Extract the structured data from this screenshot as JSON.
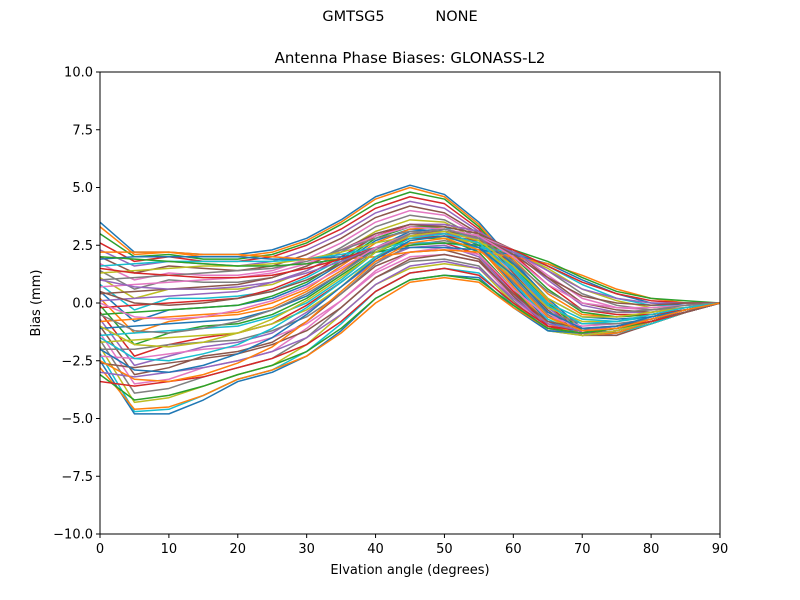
{
  "figure": {
    "suptitle": "GMTSG5           NONE"
  },
  "chart_data": {
    "type": "line",
    "title": "Antenna Phase Biases: GLONASS-L2",
    "xlabel": "Elvation angle (degrees)",
    "ylabel": "Bias (mm)",
    "xlim": [
      0,
      90
    ],
    "ylim": [
      -10,
      10
    ],
    "xticks": [
      0,
      10,
      20,
      30,
      40,
      50,
      60,
      70,
      80,
      90
    ],
    "yticks": [
      -10.0,
      -7.5,
      -5.0,
      -2.5,
      0.0,
      2.5,
      5.0,
      7.5,
      10.0
    ],
    "ytick_labels": [
      "−10.0",
      "−7.5",
      "−5.0",
      "−2.5",
      "0.0",
      "2.5",
      "5.0",
      "7.5",
      "10.0"
    ],
    "xtick_labels": [
      "0",
      "10",
      "20",
      "30",
      "40",
      "50",
      "60",
      "70",
      "80",
      "90"
    ],
    "grid": false,
    "x": [
      0,
      5,
      10,
      15,
      20,
      25,
      30,
      35,
      40,
      45,
      50,
      55,
      60,
      65,
      70,
      75,
      80,
      85,
      90
    ],
    "colors": [
      "#1f77b4",
      "#ff7f0e",
      "#2ca02c",
      "#d62728",
      "#9467bd",
      "#8c564b",
      "#e377c2",
      "#7f7f7f",
      "#bcbd22",
      "#17becf"
    ],
    "series": [
      {
        "values": [
          3.5,
          2.2,
          2.2,
          2.1,
          2.1,
          2.3,
          2.8,
          3.6,
          4.6,
          5.1,
          4.7,
          3.5,
          1.8,
          0.2,
          -1.1,
          -1.3,
          -0.9,
          -0.4,
          0.0
        ]
      },
      {
        "values": [
          3.3,
          2.1,
          2.2,
          2.0,
          2.0,
          2.2,
          2.7,
          3.5,
          4.5,
          5.0,
          4.6,
          3.4,
          1.7,
          0.1,
          -1.2,
          -1.3,
          -0.9,
          -0.4,
          0.0
        ]
      },
      {
        "values": [
          3.0,
          2.0,
          2.1,
          1.9,
          1.9,
          2.1,
          2.6,
          3.4,
          4.3,
          4.8,
          4.5,
          3.3,
          1.6,
          0.0,
          -1.2,
          -1.3,
          -0.9,
          -0.4,
          0.0
        ]
      },
      {
        "values": [
          2.6,
          1.8,
          2.0,
          1.8,
          1.8,
          2.0,
          2.5,
          3.2,
          4.1,
          4.6,
          4.3,
          3.2,
          1.5,
          -0.1,
          -1.3,
          -1.3,
          -0.9,
          -0.4,
          0.0
        ]
      },
      {
        "values": [
          2.3,
          1.6,
          1.8,
          1.7,
          1.6,
          1.8,
          2.3,
          3.0,
          3.9,
          4.4,
          4.1,
          3.1,
          1.4,
          -0.2,
          -1.3,
          -1.4,
          -0.9,
          -0.4,
          0.0
        ]
      },
      {
        "values": [
          2.0,
          1.3,
          1.6,
          1.5,
          1.4,
          1.6,
          2.1,
          2.8,
          3.7,
          4.2,
          3.9,
          3.0,
          1.3,
          -0.3,
          -1.4,
          -1.4,
          -0.9,
          -0.4,
          0.0
        ]
      },
      {
        "values": [
          1.7,
          1.0,
          1.3,
          1.2,
          1.2,
          1.4,
          1.9,
          2.6,
          3.5,
          4.0,
          3.8,
          2.9,
          1.2,
          -0.4,
          -1.4,
          -1.3,
          -0.9,
          -0.4,
          0.0
        ]
      },
      {
        "values": [
          1.4,
          0.6,
          1.0,
          0.9,
          0.9,
          1.1,
          1.6,
          2.4,
          3.3,
          3.8,
          3.6,
          2.8,
          1.1,
          -0.5,
          -1.4,
          -1.3,
          -0.9,
          -0.4,
          0.0
        ]
      },
      {
        "values": [
          1.1,
          0.2,
          0.6,
          0.6,
          0.6,
          0.8,
          1.4,
          2.2,
          3.1,
          3.6,
          3.5,
          2.7,
          1.0,
          -0.6,
          -1.4,
          -1.3,
          -0.9,
          -0.4,
          0.0
        ]
      },
      {
        "values": [
          0.8,
          -0.3,
          0.2,
          0.2,
          0.3,
          0.5,
          1.1,
          1.9,
          2.9,
          3.4,
          3.3,
          2.6,
          0.9,
          -0.7,
          -1.4,
          -1.3,
          -0.9,
          -0.4,
          0.0
        ]
      },
      {
        "values": [
          0.5,
          -0.8,
          -0.3,
          -0.2,
          -0.1,
          0.2,
          0.8,
          1.7,
          2.7,
          3.2,
          3.1,
          2.5,
          0.8,
          -0.8,
          -1.4,
          -1.3,
          -0.8,
          -0.4,
          0.0
        ]
      },
      {
        "values": [
          0.2,
          -1.3,
          -0.8,
          -0.6,
          -0.5,
          -0.2,
          0.5,
          1.4,
          2.4,
          3.0,
          3.0,
          2.4,
          0.7,
          -0.9,
          -1.4,
          -1.3,
          -0.8,
          -0.4,
          0.0
        ]
      },
      {
        "values": [
          -0.1,
          -1.8,
          -1.3,
          -1.0,
          -0.9,
          -0.5,
          0.2,
          1.2,
          2.2,
          2.8,
          2.8,
          2.2,
          0.6,
          -1.0,
          -1.4,
          -1.2,
          -0.8,
          -0.4,
          0.0
        ]
      },
      {
        "values": [
          -0.4,
          -2.3,
          -1.8,
          -1.5,
          -1.3,
          -0.9,
          -0.1,
          0.9,
          2.0,
          2.6,
          2.6,
          2.1,
          0.5,
          -1.0,
          -1.4,
          -1.2,
          -0.8,
          -0.4,
          0.0
        ]
      },
      {
        "values": [
          -0.7,
          -2.7,
          -2.3,
          -1.9,
          -1.7,
          -1.3,
          -0.4,
          0.7,
          1.8,
          2.4,
          2.5,
          2.0,
          0.4,
          -1.1,
          -1.4,
          -1.2,
          -0.8,
          -0.4,
          0.0
        ]
      },
      {
        "values": [
          -1.0,
          -3.1,
          -2.8,
          -2.3,
          -2.1,
          -1.7,
          -0.8,
          0.4,
          1.6,
          2.2,
          2.3,
          1.9,
          0.3,
          -1.1,
          -1.4,
          -1.2,
          -0.8,
          -0.4,
          0.0
        ]
      },
      {
        "values": [
          -1.3,
          -3.5,
          -3.3,
          -2.8,
          -2.5,
          -2.1,
          -1.1,
          0.1,
          1.3,
          2.0,
          2.1,
          1.8,
          0.2,
          -1.1,
          -1.4,
          -1.2,
          -0.8,
          -0.4,
          0.0
        ]
      },
      {
        "values": [
          -1.6,
          -3.9,
          -3.7,
          -3.2,
          -2.8,
          -2.4,
          -1.5,
          -0.2,
          1.1,
          1.8,
          1.9,
          1.6,
          0.1,
          -1.2,
          -1.4,
          -1.2,
          -0.8,
          -0.4,
          0.0
        ]
      },
      {
        "values": [
          -1.9,
          -4.3,
          -4.1,
          -3.6,
          -3.1,
          -2.7,
          -1.8,
          -0.5,
          0.8,
          1.5,
          1.7,
          1.5,
          0.0,
          -1.2,
          -1.4,
          -1.2,
          -0.8,
          -0.4,
          0.0
        ]
      },
      {
        "values": [
          -2.2,
          -4.7,
          -4.6,
          -4.0,
          -3.3,
          -2.9,
          -2.1,
          -0.9,
          0.5,
          1.3,
          1.5,
          1.3,
          -0.1,
          -1.2,
          -1.3,
          -1.1,
          -0.8,
          -0.4,
          0.0
        ]
      },
      {
        "values": [
          -2.5,
          -4.8,
          -4.8,
          -4.2,
          -3.4,
          -3.0,
          -2.3,
          -1.2,
          0.2,
          1.0,
          1.2,
          1.1,
          -0.2,
          -1.2,
          -1.3,
          -1.1,
          -0.8,
          -0.4,
          0.0
        ]
      },
      {
        "values": [
          -2.8,
          -4.6,
          -4.5,
          -4.0,
          -3.3,
          -2.9,
          -2.3,
          -1.3,
          0.0,
          0.9,
          1.1,
          0.9,
          -0.2,
          -1.1,
          -1.3,
          -1.1,
          -0.8,
          -0.4,
          0.0
        ]
      },
      {
        "values": [
          -3.1,
          -4.2,
          -4.0,
          -3.6,
          -3.1,
          -2.7,
          -2.1,
          -1.1,
          0.2,
          1.0,
          1.2,
          1.0,
          -0.1,
          -1.1,
          -1.3,
          -1.1,
          -0.8,
          -0.4,
          0.0
        ]
      },
      {
        "values": [
          -3.4,
          -3.6,
          -3.4,
          -3.2,
          -2.8,
          -2.4,
          -1.8,
          -0.8,
          0.5,
          1.3,
          1.5,
          1.2,
          0.0,
          -1.0,
          -1.2,
          -1.0,
          -0.8,
          -0.4,
          0.0
        ]
      },
      {
        "values": [
          -3.0,
          -3.2,
          -3.0,
          -2.8,
          -2.5,
          -2.1,
          -1.5,
          -0.5,
          0.8,
          1.6,
          1.8,
          1.5,
          0.2,
          -0.9,
          -1.2,
          -1.0,
          -0.7,
          -0.4,
          0.0
        ]
      },
      {
        "values": [
          -2.6,
          -2.8,
          -2.6,
          -2.4,
          -2.2,
          -1.8,
          -1.2,
          -0.2,
          1.1,
          1.9,
          2.1,
          1.8,
          0.4,
          -0.8,
          -1.1,
          -1.0,
          -0.7,
          -0.4,
          0.0
        ]
      },
      {
        "values": [
          -2.3,
          -2.4,
          -2.2,
          -2.0,
          -1.9,
          -1.5,
          -0.9,
          0.1,
          1.4,
          2.2,
          2.4,
          2.1,
          0.6,
          -0.6,
          -1.0,
          -0.9,
          -0.7,
          -0.3,
          0.0
        ]
      },
      {
        "values": [
          -2.0,
          -2.0,
          -1.8,
          -1.7,
          -1.6,
          -1.2,
          -0.6,
          0.4,
          1.7,
          2.5,
          2.7,
          2.4,
          0.9,
          -0.4,
          -0.9,
          -0.9,
          -0.7,
          -0.3,
          0.0
        ]
      },
      {
        "values": [
          -1.7,
          -1.6,
          -1.5,
          -1.4,
          -1.3,
          -0.9,
          -0.3,
          0.7,
          2.0,
          2.8,
          2.9,
          2.6,
          1.2,
          -0.2,
          -0.8,
          -0.8,
          -0.6,
          -0.3,
          0.0
        ]
      },
      {
        "values": [
          -1.4,
          -1.3,
          -1.2,
          -1.1,
          -1.0,
          -0.6,
          0.0,
          1.0,
          2.2,
          3.0,
          3.1,
          2.8,
          1.5,
          0.0,
          -0.7,
          -0.8,
          -0.6,
          -0.3,
          0.0
        ]
      },
      {
        "values": [
          -1.1,
          -1.0,
          -0.9,
          -0.8,
          -0.7,
          -0.3,
          0.3,
          1.3,
          2.4,
          3.1,
          3.2,
          2.9,
          1.7,
          0.2,
          -0.6,
          -0.7,
          -0.6,
          -0.3,
          0.0
        ]
      },
      {
        "values": [
          -0.8,
          -0.7,
          -0.6,
          -0.5,
          -0.4,
          0.0,
          0.6,
          1.6,
          2.6,
          3.2,
          3.3,
          3.0,
          1.9,
          0.4,
          -0.5,
          -0.6,
          -0.5,
          -0.3,
          0.0
        ]
      },
      {
        "values": [
          -0.5,
          -0.4,
          -0.3,
          -0.2,
          -0.1,
          0.3,
          0.9,
          1.8,
          2.8,
          3.3,
          3.3,
          3.0,
          2.0,
          0.6,
          -0.4,
          -0.6,
          -0.5,
          -0.3,
          0.0
        ]
      },
      {
        "values": [
          -0.2,
          -0.1,
          0.0,
          0.1,
          0.2,
          0.6,
          1.2,
          2.0,
          2.9,
          3.4,
          3.4,
          3.1,
          2.1,
          0.8,
          -0.3,
          -0.5,
          -0.5,
          -0.3,
          0.0
        ]
      },
      {
        "values": [
          0.1,
          0.2,
          0.3,
          0.4,
          0.5,
          0.9,
          1.4,
          2.2,
          3.0,
          3.4,
          3.4,
          3.1,
          2.2,
          1.0,
          -0.1,
          -0.4,
          -0.4,
          -0.2,
          0.0
        ]
      },
      {
        "values": [
          0.4,
          0.5,
          0.6,
          0.7,
          0.8,
          1.1,
          1.6,
          2.3,
          3.0,
          3.4,
          3.3,
          3.0,
          2.3,
          1.1,
          0.0,
          -0.3,
          -0.4,
          -0.2,
          0.0
        ]
      },
      {
        "values": [
          0.7,
          0.8,
          0.9,
          1.0,
          1.1,
          1.3,
          1.7,
          2.3,
          2.9,
          3.3,
          3.2,
          2.9,
          2.3,
          1.2,
          0.2,
          -0.2,
          -0.3,
          -0.2,
          0.0
        ]
      },
      {
        "values": [
          1.0,
          1.1,
          1.2,
          1.3,
          1.4,
          1.5,
          1.8,
          2.3,
          2.8,
          3.1,
          3.0,
          2.8,
          2.3,
          1.4,
          0.4,
          -0.1,
          -0.3,
          -0.2,
          0.0
        ]
      },
      {
        "values": [
          1.3,
          1.4,
          1.5,
          1.6,
          1.6,
          1.7,
          1.9,
          2.2,
          2.6,
          2.9,
          2.8,
          2.6,
          2.2,
          1.5,
          0.6,
          0.1,
          -0.2,
          -0.1,
          0.0
        ]
      },
      {
        "values": [
          1.6,
          1.7,
          1.8,
          1.8,
          1.8,
          1.8,
          1.9,
          2.1,
          2.4,
          2.6,
          2.6,
          2.4,
          2.2,
          1.6,
          0.8,
          0.2,
          -0.1,
          -0.1,
          0.0
        ]
      },
      {
        "values": [
          1.9,
          2.0,
          2.0,
          2.0,
          2.0,
          1.9,
          1.9,
          2.0,
          2.2,
          2.4,
          2.4,
          2.3,
          2.1,
          1.7,
          1.0,
          0.4,
          0.0,
          -0.1,
          0.0
        ]
      },
      {
        "values": [
          2.2,
          2.2,
          2.2,
          2.1,
          2.1,
          2.0,
          1.9,
          1.9,
          2.0,
          2.2,
          2.3,
          2.2,
          2.0,
          1.7,
          1.2,
          0.6,
          0.2,
          0.0,
          0.0
        ]
      },
      {
        "values": [
          2.0,
          1.9,
          1.8,
          1.7,
          1.6,
          1.6,
          1.7,
          1.9,
          2.2,
          2.5,
          2.6,
          2.5,
          2.3,
          1.8,
          1.1,
          0.5,
          0.2,
          0.1,
          0.0
        ]
      },
      {
        "values": [
          1.5,
          1.3,
          1.2,
          1.1,
          1.1,
          1.2,
          1.5,
          1.9,
          2.4,
          2.8,
          2.9,
          2.7,
          2.3,
          1.6,
          0.9,
          0.4,
          0.1,
          0.0,
          0.0
        ]
      },
      {
        "values": [
          1.0,
          0.7,
          0.6,
          0.6,
          0.7,
          0.9,
          1.3,
          1.8,
          2.4,
          2.9,
          3.0,
          2.8,
          2.2,
          1.4,
          0.6,
          0.2,
          0.0,
          0.0,
          0.0
        ]
      },
      {
        "values": [
          0.5,
          0.0,
          -0.1,
          0.0,
          0.2,
          0.5,
          1.0,
          1.7,
          2.4,
          3.0,
          3.1,
          2.9,
          2.1,
          1.1,
          0.3,
          0.0,
          -0.1,
          0.0,
          0.0
        ]
      },
      {
        "values": [
          0.0,
          -0.6,
          -0.7,
          -0.6,
          -0.3,
          0.1,
          0.7,
          1.5,
          2.4,
          3.0,
          3.2,
          2.9,
          2.0,
          0.8,
          0.0,
          -0.2,
          -0.2,
          -0.1,
          0.0
        ]
      },
      {
        "values": [
          -0.5,
          -1.2,
          -1.3,
          -1.1,
          -0.8,
          -0.3,
          0.4,
          1.3,
          2.3,
          3.0,
          3.2,
          2.8,
          1.8,
          0.5,
          -0.3,
          -0.4,
          -0.3,
          -0.1,
          0.0
        ]
      },
      {
        "values": [
          -1.0,
          -1.8,
          -1.9,
          -1.7,
          -1.3,
          -0.7,
          0.1,
          1.1,
          2.2,
          2.9,
          3.1,
          2.7,
          1.6,
          0.2,
          -0.6,
          -0.6,
          -0.4,
          -0.2,
          0.0
        ]
      },
      {
        "values": [
          -1.5,
          -2.4,
          -2.5,
          -2.2,
          -1.8,
          -1.1,
          -0.2,
          0.9,
          2.0,
          2.8,
          3.0,
          2.6,
          1.4,
          -0.1,
          -0.9,
          -0.8,
          -0.5,
          -0.2,
          0.0
        ]
      },
      {
        "values": [
          -2.0,
          -2.9,
          -3.0,
          -2.7,
          -2.2,
          -1.5,
          -0.5,
          0.7,
          1.9,
          2.7,
          2.9,
          2.4,
          1.2,
          -0.4,
          -1.1,
          -1.0,
          -0.6,
          -0.3,
          0.0
        ]
      },
      {
        "values": [
          -2.5,
          -3.3,
          -3.4,
          -3.1,
          -2.6,
          -1.9,
          -0.8,
          0.5,
          1.8,
          2.6,
          2.8,
          2.3,
          1.0,
          -0.6,
          -1.2,
          -1.1,
          -0.7,
          -0.3,
          0.0
        ]
      }
    ]
  }
}
